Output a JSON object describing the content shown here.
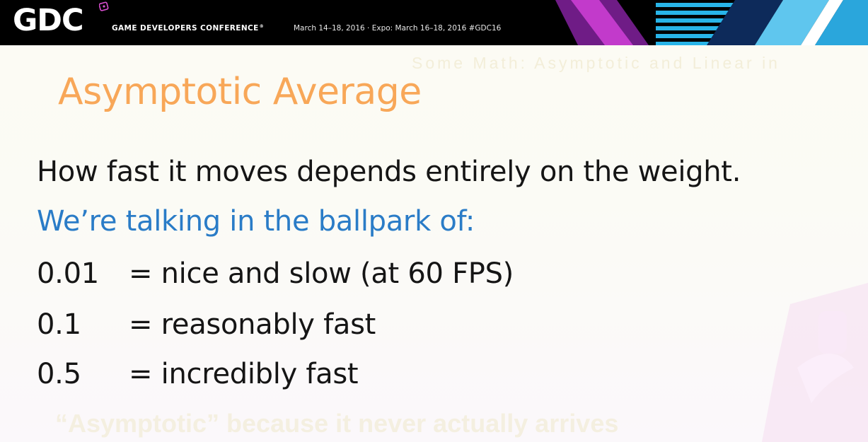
{
  "banner": {
    "logo_text": "GDC",
    "conference_name": "GAME DEVELOPERS CONFERENCE",
    "conference_mark": "®",
    "dates": "March 14–18, 2016 · Expo: March 16–18, 2016  #GDC16",
    "colors": {
      "background": "#000000",
      "stripe_cyan": "#28b4e8",
      "stripe_magenta": "#c23acb",
      "stripe_dark": "#0d2a5a"
    }
  },
  "slide": {
    "title": "Asymptotic Average",
    "intro": "How fast it moves depends entirely on the weight.",
    "highlight": "We’re talking in the ballpark of:",
    "rows": [
      {
        "value": "0.01",
        "description": "= nice and slow (at 60 FPS)"
      },
      {
        "value": "0.1",
        "description": "= reasonably fast"
      },
      {
        "value": "0.5",
        "description": "= incredibly fast"
      }
    ],
    "colors": {
      "title": "#f8a758",
      "highlight": "#2a7cc7",
      "body": "#151515"
    }
  },
  "ghost": {
    "bottom_text": "“Asymptotic” because it never actually arrives",
    "top_text": "Some Math: Asymptotic and Linear in"
  }
}
